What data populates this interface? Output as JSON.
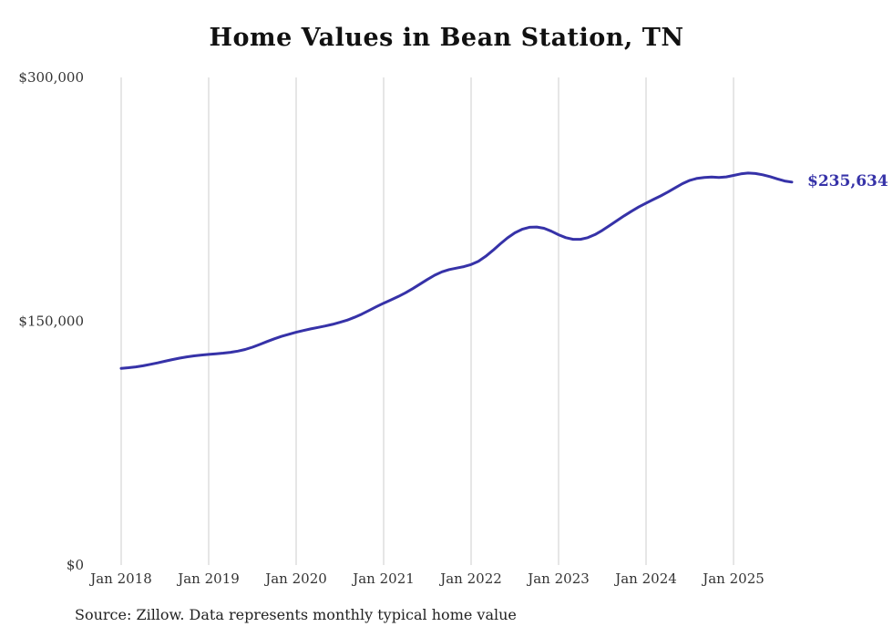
{
  "chart": {
    "title": "Home Values in Bean Station, TN",
    "end_label": "$235,634",
    "source": "Source: Zillow. Data represents monthly typical home value"
  },
  "colors": {
    "line": "#3632a8",
    "grid": "#cccccc",
    "tick_text": "#333333"
  },
  "chart_data": {
    "type": "line",
    "title": "Home Values in Bean Station, TN",
    "xlabel": "",
    "ylabel": "",
    "ylim": [
      0,
      300000
    ],
    "grid": "vertical-only",
    "legend": "none",
    "annotation": "$235,634",
    "yticks": [
      {
        "label": "$0",
        "value": 0
      },
      {
        "label": "$150,000",
        "value": 150000
      },
      {
        "label": "$300,000",
        "value": 300000
      }
    ],
    "xticks": [
      {
        "label": "Jan 2018",
        "month": 0
      },
      {
        "label": "Jan 2019",
        "month": 12
      },
      {
        "label": "Jan 2020",
        "month": 24
      },
      {
        "label": "Jan 2021",
        "month": 36
      },
      {
        "label": "Jan 2022",
        "month": 48
      },
      {
        "label": "Jan 2023",
        "month": 60
      },
      {
        "label": "Jan 2024",
        "month": 72
      },
      {
        "label": "Jan 2025",
        "month": 84
      }
    ],
    "series_name": "Monthly typical home value",
    "values": [
      121000,
      121400,
      121900,
      122600,
      123500,
      124400,
      125400,
      126400,
      127300,
      128100,
      128700,
      129200,
      129600,
      130000,
      130400,
      130900,
      131600,
      132600,
      134000,
      135700,
      137500,
      139200,
      140700,
      142000,
      143200,
      144300,
      145300,
      146200,
      147100,
      148100,
      149300,
      150700,
      152400,
      154400,
      156600,
      158900,
      161100,
      163100,
      165200,
      167500,
      170100,
      172900,
      175700,
      178300,
      180400,
      181800,
      182700,
      183600,
      184900,
      186900,
      189900,
      193600,
      197600,
      201300,
      204400,
      206600,
      207800,
      208000,
      207200,
      205400,
      203200,
      201400,
      200400,
      200400,
      201400,
      203300,
      205900,
      208900,
      211900,
      214900,
      217700,
      220300,
      222700,
      224900,
      227100,
      229500,
      232100,
      234700,
      236700,
      237900,
      238500,
      238700,
      238500,
      238800,
      239700,
      240700,
      241200,
      240900,
      240100,
      239000,
      237600,
      236300,
      235634
    ]
  }
}
